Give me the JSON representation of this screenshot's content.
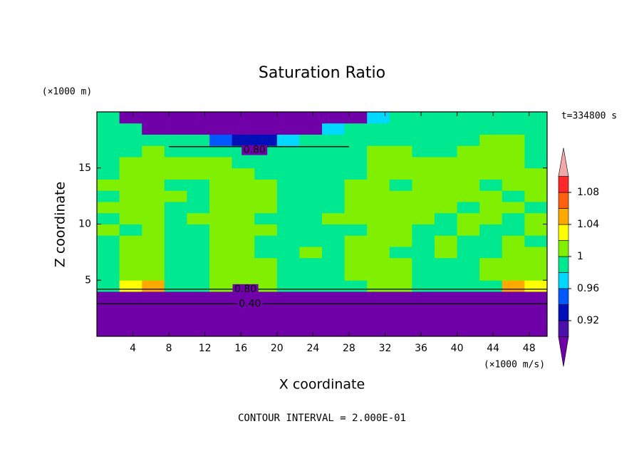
{
  "chart_data": {
    "type": "contour",
    "title": "Saturation Ratio",
    "xlabel": "X coordinate",
    "ylabel": "Z coordinate",
    "x_unit": "(×1000 m/s)",
    "y_unit": "(×1000 m)",
    "time_label": "t=334800 s",
    "footer": "CONTOUR INTERVAL = 2.000E-01",
    "xlim": [
      0,
      50
    ],
    "xticks": [
      4,
      8,
      12,
      16,
      20,
      24,
      28,
      32,
      36,
      40,
      44,
      48
    ],
    "ylim": [
      0,
      20
    ],
    "yticks": [
      5,
      10,
      15
    ],
    "x": [
      1.25,
      3.75,
      6.25,
      8.75,
      11.25,
      13.75,
      16.25,
      18.75,
      21.25,
      23.75,
      26.25,
      28.75,
      31.25,
      33.75,
      36.25,
      38.75,
      41.25,
      43.75,
      46.25,
      48.75
    ],
    "y": [
      0.5,
      1.5,
      2.5,
      3.5,
      4.5,
      5.5,
      6.5,
      7.5,
      8.5,
      9.5,
      10.5,
      11.5,
      12.5,
      13.5,
      14.5,
      15.5,
      16.5,
      17.5,
      18.5,
      19.5
    ],
    "z": [
      [
        0.2,
        0.2,
        0.2,
        0.2,
        0.2,
        0.2,
        0.2,
        0.2,
        0.2,
        0.2,
        0.2,
        0.2,
        0.2,
        0.2,
        0.2,
        0.2,
        0.2,
        0.2,
        0.2,
        0.2
      ],
      [
        0.35,
        0.35,
        0.35,
        0.35,
        0.35,
        0.35,
        0.35,
        0.35,
        0.35,
        0.35,
        0.35,
        0.35,
        0.35,
        0.35,
        0.35,
        0.35,
        0.35,
        0.35,
        0.35,
        0.35
      ],
      [
        0.5,
        0.5,
        0.5,
        0.5,
        0.5,
        0.5,
        0.5,
        0.5,
        0.5,
        0.5,
        0.5,
        0.5,
        0.5,
        0.5,
        0.5,
        0.5,
        0.5,
        0.5,
        0.5,
        0.5
      ],
      [
        0.7,
        0.7,
        0.7,
        0.7,
        0.7,
        0.7,
        0.7,
        0.7,
        0.7,
        0.7,
        0.7,
        0.7,
        0.7,
        0.7,
        0.7,
        0.7,
        0.7,
        0.7,
        0.7,
        0.7
      ],
      [
        0.99,
        1.03,
        1.05,
        0.99,
        0.98,
        1.01,
        1.01,
        1.01,
        0.98,
        0.98,
        0.99,
        0.99,
        1.01,
        1.01,
        0.99,
        0.98,
        0.99,
        0.99,
        1.05,
        1.03
      ],
      [
        0.99,
        1.01,
        1.01,
        0.99,
        0.99,
        1.01,
        1.01,
        1.01,
        0.99,
        0.99,
        0.99,
        1.01,
        1.01,
        1.01,
        0.99,
        0.99,
        0.99,
        1.01,
        1.01,
        1.01
      ],
      [
        0.99,
        1.01,
        1.01,
        0.99,
        0.99,
        1.01,
        1.01,
        1.01,
        0.99,
        0.99,
        0.99,
        1.01,
        1.01,
        1.01,
        0.99,
        0.99,
        0.99,
        1.01,
        1.01,
        1.01
      ],
      [
        0.99,
        1.01,
        1.01,
        0.99,
        0.99,
        1.01,
        1.01,
        0.99,
        0.99,
        1.01,
        0.99,
        1.01,
        1.01,
        0.99,
        0.99,
        1.01,
        0.99,
        0.99,
        1.01,
        1.01
      ],
      [
        0.99,
        1.01,
        1.01,
        0.99,
        0.99,
        1.01,
        1.01,
        0.99,
        0.99,
        0.99,
        0.99,
        1.01,
        1.01,
        1.01,
        0.99,
        1.01,
        0.99,
        0.99,
        1.01,
        0.99
      ],
      [
        1.01,
        0.99,
        1.01,
        0.99,
        0.99,
        1.01,
        1.01,
        1.01,
        0.99,
        0.99,
        0.99,
        0.99,
        1.01,
        1.01,
        0.99,
        0.99,
        1.01,
        0.99,
        0.99,
        1.01
      ],
      [
        0.99,
        1.01,
        1.01,
        0.99,
        1.01,
        1.01,
        1.01,
        0.99,
        0.99,
        0.99,
        1.01,
        1.01,
        1.01,
        1.01,
        1.01,
        0.99,
        1.01,
        1.01,
        0.99,
        1.01
      ],
      [
        1.01,
        1.01,
        1.01,
        0.99,
        0.99,
        1.01,
        1.01,
        1.01,
        0.99,
        0.99,
        0.99,
        1.01,
        1.01,
        1.01,
        1.01,
        1.01,
        0.99,
        1.01,
        1.01,
        0.99
      ],
      [
        0.99,
        1.01,
        1.01,
        1.01,
        0.99,
        1.01,
        1.01,
        1.01,
        0.99,
        0.99,
        0.99,
        1.01,
        1.01,
        1.01,
        1.01,
        1.01,
        1.01,
        1.01,
        0.99,
        1.01
      ],
      [
        1.01,
        1.01,
        1.01,
        0.99,
        0.99,
        1.01,
        1.01,
        1.01,
        0.99,
        0.99,
        0.99,
        1.01,
        1.01,
        0.99,
        1.01,
        1.01,
        1.01,
        0.99,
        1.01,
        1.01
      ],
      [
        0.99,
        1.01,
        1.01,
        1.01,
        1.01,
        1.01,
        1.01,
        0.99,
        0.99,
        0.99,
        0.99,
        0.99,
        1.01,
        1.01,
        1.01,
        1.01,
        1.01,
        1.01,
        1.01,
        1.01
      ],
      [
        0.99,
        1.01,
        1.01,
        1.01,
        1.01,
        1.01,
        0.99,
        0.99,
        0.99,
        0.99,
        0.99,
        0.99,
        1.01,
        1.01,
        1.01,
        1.01,
        1.01,
        1.01,
        1.01,
        0.99
      ],
      [
        0.99,
        0.99,
        1.01,
        0.99,
        0.99,
        0.99,
        0.99,
        0.99,
        0.99,
        0.99,
        0.99,
        0.99,
        1.01,
        1.01,
        0.99,
        0.99,
        1.01,
        1.01,
        1.01,
        0.99
      ],
      [
        0.99,
        0.99,
        0.99,
        0.99,
        0.99,
        0.95,
        0.93,
        0.93,
        0.97,
        0.99,
        0.99,
        0.99,
        0.99,
        0.99,
        0.99,
        0.99,
        0.99,
        1.01,
        1.01,
        0.99
      ],
      [
        0.99,
        0.99,
        0.7,
        0.7,
        0.7,
        0.7,
        0.7,
        0.7,
        0.8,
        0.7,
        0.97,
        0.99,
        0.99,
        0.99,
        0.99,
        0.99,
        0.99,
        0.99,
        0.99,
        0.99
      ],
      [
        0.99,
        0.7,
        0.6,
        0.6,
        0.6,
        0.7,
        0.8,
        0.7,
        0.7,
        0.6,
        0.7,
        0.7,
        0.97,
        0.99,
        0.99,
        0.99,
        0.99,
        0.99,
        0.99,
        0.99
      ]
    ],
    "colorbar": {
      "bounds": [
        0.9,
        0.92,
        0.94,
        0.96,
        0.98,
        1,
        1.02,
        1.04,
        1.06,
        1.08,
        1.1
      ],
      "colors": [
        "#7000a8",
        "#4a10a8",
        "#0010b8",
        "#0058ff",
        "#00d8ff",
        "#00e890",
        "#80f000",
        "#ffff00",
        "#ffa800",
        "#ff6010",
        "#ff2828",
        "#f0a8a8"
      ],
      "ticks": [
        0.92,
        0.96,
        1,
        1.04,
        1.08
      ]
    },
    "contour_labels": [
      {
        "value": 0.8,
        "label": "0.80"
      },
      {
        "value": 0.8,
        "label": "0.80"
      },
      {
        "value": 0.4,
        "label": "0.40"
      }
    ]
  }
}
